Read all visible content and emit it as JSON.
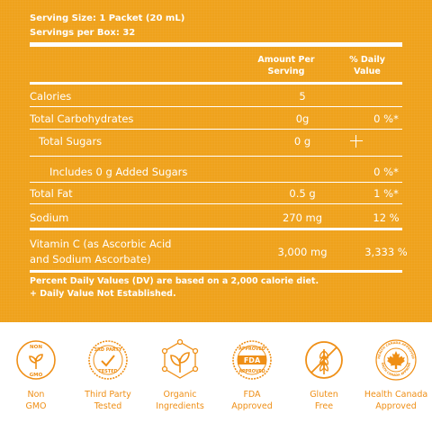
{
  "header": {
    "serving_size": "Serving Size: 1 Packet (20 mL)",
    "servings_per_box": "Servings per Box: 32"
  },
  "columns": {
    "amount_line1": "Amount Per",
    "amount_line2": "Serving",
    "dv_line1": "% Daily",
    "dv_line2": "Value"
  },
  "nutrients": [
    {
      "label": "Calories",
      "amount": "5",
      "dv": ""
    },
    {
      "label": "Total Carbohydrates",
      "amount": "0g",
      "dv": "0 %*"
    },
    {
      "label": "Total Sugars",
      "amount": "0 g",
      "dv": ""
    },
    {
      "label": "Includes 0 g Added Sugars",
      "amount": "",
      "dv": "0 %*"
    },
    {
      "label": "Total Fat",
      "amount": "0.5 g",
      "dv": "1 %*"
    },
    {
      "label": "Sodium",
      "amount": "270 mg",
      "dv": "12 %"
    },
    {
      "label_line1": "Vitamin C (as Ascorbic Acid",
      "label_line2": "and Sodium  Ascorbate)",
      "amount": "3,000 mg",
      "dv": "3,333 %"
    }
  ],
  "footnotes": {
    "line1": "Percent Daily Values (DV) are based on a 2,000 calorie diet.",
    "line2": "+ Daily Value Not Established."
  },
  "badges": [
    {
      "icon": "non-gmo-icon",
      "line1": "Non",
      "line2": "GMO",
      "emblem_text": [
        "NON",
        "GMO"
      ]
    },
    {
      "icon": "third-party-tested-icon",
      "line1": "Third Party",
      "line2": "Tested",
      "emblem_text": [
        "3RD PARTY",
        "TESTED"
      ]
    },
    {
      "icon": "organic-leaf-icon",
      "line1": "Organic",
      "line2": "Ingredients"
    },
    {
      "icon": "fda-approved-icon",
      "line1": "FDA",
      "line2": "Approved",
      "emblem_text": [
        "APPROVED",
        "FDA",
        "APPROVED"
      ]
    },
    {
      "icon": "gluten-free-icon",
      "line1": "Gluten",
      "line2": "Free"
    },
    {
      "icon": "maple-leaf-icon",
      "line1": "Health Canada",
      "line2": "Approved",
      "emblem_text": [
        "HEALTH CANADA APPROVED",
        "HEALTH CANADA APPROVED"
      ]
    }
  ],
  "colors": {
    "panel": "#efa21c",
    "badge_accent": "#ef8f16",
    "text": "#ffffff"
  }
}
